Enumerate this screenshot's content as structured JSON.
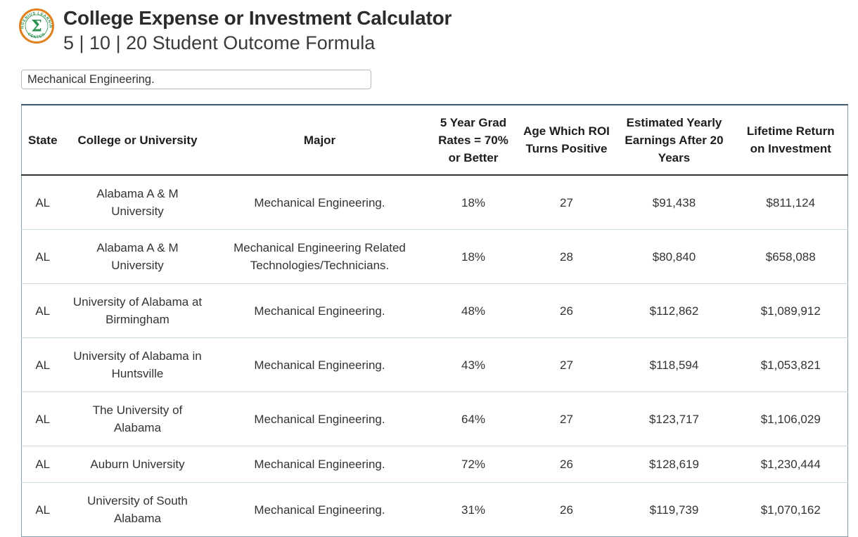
{
  "logo": {
    "arc_top": "ENGENIUS LEARNING",
    "arc_bottom": "CENTER",
    "sigma": "Σ",
    "ring_color": "#E0801F",
    "text_color": "#2E9150"
  },
  "header": {
    "title": "College Expense or Investment Calculator",
    "subtitle": "5 | 10 | 20 Student Outcome Formula"
  },
  "search": {
    "value": "Mechanical Engineering."
  },
  "table": {
    "columns": [
      "State",
      "College or University",
      "Major",
      "5 Year Grad Rates = 70% or Better",
      "Age Which ROI Turns Positive",
      "Estimated Yearly Earnings After 20 Years",
      "Lifetime Return on Investment"
    ],
    "rows": [
      [
        "AL",
        "Alabama A & M University",
        "Mechanical Engineering.",
        "18%",
        "27",
        "$91,438",
        "$811,124"
      ],
      [
        "AL",
        "Alabama A & M University",
        "Mechanical Engineering Related Technologies/Technicians.",
        "18%",
        "28",
        "$80,840",
        "$658,088"
      ],
      [
        "AL",
        "University of Alabama at Birmingham",
        "Mechanical Engineering.",
        "48%",
        "26",
        "$112,862",
        "$1,089,912"
      ],
      [
        "AL",
        "University of Alabama in Huntsville",
        "Mechanical Engineering.",
        "43%",
        "27",
        "$118,594",
        "$1,053,821"
      ],
      [
        "AL",
        "The University of Alabama",
        "Mechanical Engineering.",
        "64%",
        "27",
        "$123,717",
        "$1,106,029"
      ],
      [
        "AL",
        "Auburn University",
        "Mechanical Engineering.",
        "72%",
        "26",
        "$128,619",
        "$1,230,444"
      ],
      [
        "AL",
        "University of South Alabama",
        "Mechanical Engineering.",
        "31%",
        "26",
        "$119,739",
        "$1,070,162"
      ]
    ]
  },
  "colors": {
    "table_outline": "#87a2ad",
    "table_outline_top": "#41596a",
    "header_rule": "#333333",
    "row_divider": "#c9d8dd"
  }
}
